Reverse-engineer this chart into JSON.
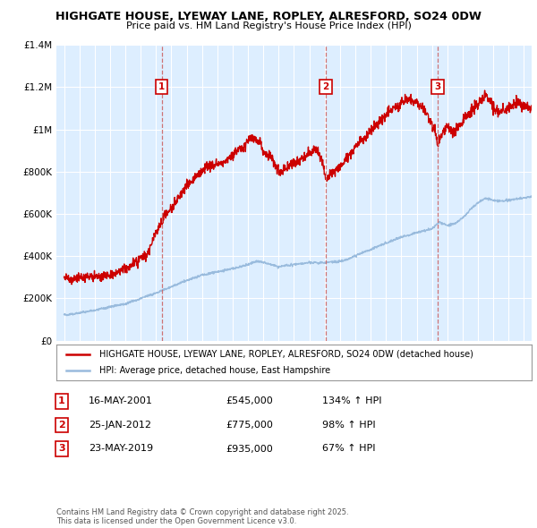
{
  "title": "HIGHGATE HOUSE, LYEWAY LANE, ROPLEY, ALRESFORD, SO24 0DW",
  "subtitle": "Price paid vs. HM Land Registry's House Price Index (HPI)",
  "ylim": [
    0,
    1400000
  ],
  "xlim_start": 1994.5,
  "xlim_end": 2025.5,
  "purchases": [
    {
      "label": "1",
      "date": "16-MAY-2001",
      "year": 2001.37,
      "price": 545000,
      "pct": "134%"
    },
    {
      "label": "2",
      "date": "25-JAN-2012",
      "year": 2012.07,
      "price": 775000,
      "pct": "98%"
    },
    {
      "label": "3",
      "date": "23-MAY-2019",
      "year": 2019.38,
      "price": 935000,
      "pct": "67%"
    }
  ],
  "line_color_red": "#cc0000",
  "line_color_blue": "#99bbdd",
  "dashed_color": "#cc6666",
  "plot_bg_color": "#ddeeff",
  "background_color": "#ffffff",
  "grid_color": "#ffffff",
  "legend_label_red": "HIGHGATE HOUSE, LYEWAY LANE, ROPLEY, ALRESFORD, SO24 0DW (detached house)",
  "legend_label_blue": "HPI: Average price, detached house, East Hampshire",
  "footer": "Contains HM Land Registry data © Crown copyright and database right 2025.\nThis data is licensed under the Open Government Licence v3.0.",
  "red_keypoints": [
    [
      1995.0,
      265000
    ],
    [
      1996.0,
      270000
    ],
    [
      1997.0,
      278000
    ],
    [
      1998.0,
      290000
    ],
    [
      1999.0,
      320000
    ],
    [
      2000.0,
      380000
    ],
    [
      2000.5,
      400000
    ],
    [
      2001.0,
      500000
    ],
    [
      2001.37,
      545000
    ],
    [
      2001.5,
      570000
    ],
    [
      2002.0,
      610000
    ],
    [
      2002.5,
      670000
    ],
    [
      2003.0,
      720000
    ],
    [
      2003.5,
      760000
    ],
    [
      2004.0,
      800000
    ],
    [
      2004.5,
      830000
    ],
    [
      2005.0,
      840000
    ],
    [
      2005.5,
      860000
    ],
    [
      2006.0,
      890000
    ],
    [
      2006.5,
      920000
    ],
    [
      2007.0,
      950000
    ],
    [
      2007.3,
      970000
    ],
    [
      2007.8,
      940000
    ],
    [
      2008.0,
      900000
    ],
    [
      2008.5,
      870000
    ],
    [
      2009.0,
      810000
    ],
    [
      2009.5,
      820000
    ],
    [
      2010.0,
      850000
    ],
    [
      2010.5,
      870000
    ],
    [
      2011.0,
      900000
    ],
    [
      2011.3,
      930000
    ],
    [
      2011.5,
      910000
    ],
    [
      2011.8,
      870000
    ],
    [
      2012.07,
      775000
    ],
    [
      2012.3,
      790000
    ],
    [
      2012.5,
      800000
    ],
    [
      2013.0,
      830000
    ],
    [
      2013.5,
      870000
    ],
    [
      2014.0,
      920000
    ],
    [
      2014.5,
      960000
    ],
    [
      2015.0,
      1000000
    ],
    [
      2015.5,
      1040000
    ],
    [
      2016.0,
      1080000
    ],
    [
      2016.5,
      1110000
    ],
    [
      2017.0,
      1130000
    ],
    [
      2017.3,
      1150000
    ],
    [
      2017.6,
      1160000
    ],
    [
      2018.0,
      1140000
    ],
    [
      2018.5,
      1110000
    ],
    [
      2018.8,
      1060000
    ],
    [
      2019.2,
      1010000
    ],
    [
      2019.38,
      935000
    ],
    [
      2019.5,
      960000
    ],
    [
      2019.8,
      1000000
    ],
    [
      2020.0,
      1020000
    ],
    [
      2020.5,
      990000
    ],
    [
      2021.0,
      1050000
    ],
    [
      2021.3,
      1080000
    ],
    [
      2021.6,
      1100000
    ],
    [
      2022.0,
      1130000
    ],
    [
      2022.3,
      1150000
    ],
    [
      2022.5,
      1170000
    ],
    [
      2022.8,
      1150000
    ],
    [
      2023.0,
      1110000
    ],
    [
      2023.3,
      1090000
    ],
    [
      2023.6,
      1100000
    ],
    [
      2024.0,
      1100000
    ],
    [
      2024.3,
      1120000
    ],
    [
      2024.6,
      1130000
    ],
    [
      2025.0,
      1110000
    ],
    [
      2025.5,
      1100000
    ]
  ],
  "blue_keypoints": [
    [
      1995.0,
      120000
    ],
    [
      1996.0,
      130000
    ],
    [
      1997.0,
      145000
    ],
    [
      1998.0,
      160000
    ],
    [
      1999.0,
      175000
    ],
    [
      2000.0,
      200000
    ],
    [
      2001.0,
      225000
    ],
    [
      2001.37,
      235000
    ],
    [
      2002.0,
      255000
    ],
    [
      2003.0,
      285000
    ],
    [
      2004.0,
      310000
    ],
    [
      2005.0,
      325000
    ],
    [
      2006.0,
      340000
    ],
    [
      2007.0,
      360000
    ],
    [
      2007.5,
      375000
    ],
    [
      2008.0,
      370000
    ],
    [
      2008.5,
      360000
    ],
    [
      2009.0,
      350000
    ],
    [
      2009.5,
      355000
    ],
    [
      2010.0,
      360000
    ],
    [
      2010.5,
      365000
    ],
    [
      2011.0,
      370000
    ],
    [
      2011.5,
      368000
    ],
    [
      2012.07,
      370000
    ],
    [
      2012.5,
      372000
    ],
    [
      2013.0,
      375000
    ],
    [
      2013.5,
      385000
    ],
    [
      2014.0,
      400000
    ],
    [
      2014.5,
      418000
    ],
    [
      2015.0,
      430000
    ],
    [
      2015.5,
      445000
    ],
    [
      2016.0,
      460000
    ],
    [
      2016.5,
      475000
    ],
    [
      2017.0,
      490000
    ],
    [
      2017.5,
      500000
    ],
    [
      2018.0,
      510000
    ],
    [
      2018.5,
      520000
    ],
    [
      2019.0,
      530000
    ],
    [
      2019.38,
      555000
    ],
    [
      2019.5,
      560000
    ],
    [
      2020.0,
      545000
    ],
    [
      2020.5,
      555000
    ],
    [
      2021.0,
      580000
    ],
    [
      2021.5,
      620000
    ],
    [
      2022.0,
      655000
    ],
    [
      2022.5,
      675000
    ],
    [
      2023.0,
      665000
    ],
    [
      2023.5,
      660000
    ],
    [
      2024.0,
      665000
    ],
    [
      2024.5,
      670000
    ],
    [
      2025.0,
      675000
    ],
    [
      2025.5,
      680000
    ]
  ]
}
